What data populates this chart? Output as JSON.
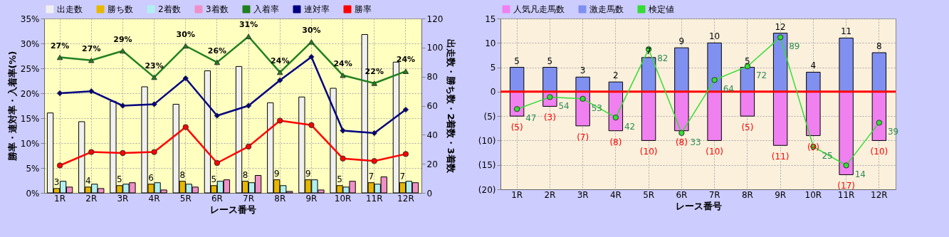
{
  "chart_data": [
    {
      "type": "bar",
      "categories": [
        "1R",
        "2R",
        "3R",
        "4R",
        "5R",
        "6R",
        "7R",
        "8R",
        "9R",
        "10R",
        "11R",
        "12R"
      ],
      "xlabel": "レース番号",
      "ylabel": "勝率・連対率・入着率(%)",
      "y2label": "出走数・勝ち数・2着数・3着数",
      "ylim": [
        0,
        35
      ],
      "yticks": [
        {
          "value": 0,
          "label": "0%"
        },
        {
          "value": 5,
          "label": "5%"
        },
        {
          "value": 10,
          "label": "10%"
        },
        {
          "value": 15,
          "label": "15%"
        },
        {
          "value": 20,
          "label": "20%"
        },
        {
          "value": 25,
          "label": "25%"
        },
        {
          "value": 30,
          "label": "30%"
        },
        {
          "value": 35,
          "label": "35%"
        }
      ],
      "y2lim": [
        0,
        120
      ],
      "y2ticks": [
        0,
        20,
        40,
        60,
        80,
        100,
        120
      ],
      "grid": true,
      "legend": "top",
      "series": [
        {
          "name": "出走数",
          "color": "#f0f0f0",
          "axis": "y2",
          "values": [
            55,
            49,
            63,
            73,
            61,
            84,
            87,
            62,
            66,
            72,
            109,
            90
          ]
        },
        {
          "name": "勝ち数",
          "color": "#e8b800",
          "axis": "y2",
          "values": [
            3,
            4,
            5,
            6,
            8,
            5,
            8,
            9,
            9,
            5,
            7,
            7
          ],
          "value_labels": [
            "3",
            "4",
            "5",
            "6",
            "8",
            "5",
            "8",
            "9",
            "9",
            "5",
            "7",
            "7"
          ]
        },
        {
          "name": "2着数",
          "color": "#b0f0f0",
          "axis": "y2",
          "values": [
            8,
            6,
            6,
            7,
            6,
            8,
            7,
            5,
            9,
            4,
            6,
            8
          ]
        },
        {
          "name": "3着数",
          "color": "#f090c8",
          "axis": "y2",
          "values": [
            4,
            3,
            7,
            2,
            4,
            9,
            12,
            1,
            2,
            8,
            11,
            7
          ]
        },
        {
          "name": "入着率",
          "type": "line",
          "marker": "triangle",
          "color": "#208020",
          "values": [
            27.2,
            26.6,
            28.5,
            23.2,
            29.5,
            26.2,
            31.4,
            24.2,
            30.3,
            23.6,
            22.0,
            24.4
          ],
          "value_labels": [
            "27%",
            "27%",
            "29%",
            "23%",
            "30%",
            "26%",
            "31%",
            "24%",
            "30%",
            "24%",
            "22%",
            "24%"
          ]
        },
        {
          "name": "連対率",
          "type": "line",
          "marker": "diamond",
          "color": "#000080",
          "values": [
            20.0,
            20.4,
            17.5,
            17.8,
            23.0,
            15.5,
            17.5,
            22.6,
            27.3,
            12.5,
            12.0,
            16.7
          ]
        },
        {
          "name": "勝率",
          "type": "line",
          "marker": "circle",
          "color": "#ff0000",
          "values": [
            5.5,
            8.2,
            8.0,
            8.2,
            13.2,
            6.0,
            9.3,
            14.5,
            13.6,
            6.9,
            6.4,
            7.8
          ]
        }
      ]
    },
    {
      "type": "bar",
      "stacked": true,
      "categories": [
        "1R",
        "2R",
        "3R",
        "4R",
        "5R",
        "6R",
        "7R",
        "8R",
        "9R",
        "10R",
        "11R",
        "12R"
      ],
      "xlabel": "レース番号",
      "ylim": [
        -20,
        15
      ],
      "y2lim": [
        0,
        100
      ],
      "yticks": [
        15,
        10,
        5,
        0,
        {
          "value": -5,
          "label": "(5)"
        },
        {
          "value": -10,
          "label": "(10)"
        },
        {
          "value": -15,
          "label": "(15)"
        },
        {
          "value": -20,
          "label": "(20)"
        }
      ],
      "grid": true,
      "legend": "top",
      "ref_lines": [
        {
          "axis": "y",
          "value": 0,
          "color": "#ff0000"
        }
      ],
      "series": [
        {
          "name": "人気凡走馬数",
          "color": "#f080f0",
          "values": [
            -5,
            -3,
            -7,
            -8,
            -10,
            -8,
            -10,
            -5,
            -11,
            -9,
            -17,
            -10
          ],
          "value_labels": [
            "(5)",
            "(3)",
            "(7)",
            "(8)",
            "(10)",
            "(8)",
            "(10)",
            "(5)",
            "(11)",
            "(9)",
            "(17)",
            "(10)"
          ]
        },
        {
          "name": "激走馬数",
          "color": "#8090f0",
          "values": [
            5,
            5,
            3,
            2,
            7,
            9,
            10,
            5,
            12,
            4,
            11,
            8
          ],
          "value_labels": [
            "5",
            "5",
            "3",
            "2",
            "7",
            "9",
            "10",
            "5",
            "12",
            "4",
            "11",
            "8"
          ]
        },
        {
          "name": "検定値",
          "type": "line",
          "marker": "circle",
          "color": "#33dd33",
          "axis": "y2",
          "values": [
            47,
            54,
            53,
            42,
            82,
            33,
            64,
            72,
            89,
            25,
            14,
            39
          ],
          "value_labels": [
            "47",
            "54",
            "53",
            "42",
            "82",
            "33",
            "64",
            "72",
            "89",
            "25",
            "14",
            "39"
          ]
        }
      ]
    }
  ]
}
